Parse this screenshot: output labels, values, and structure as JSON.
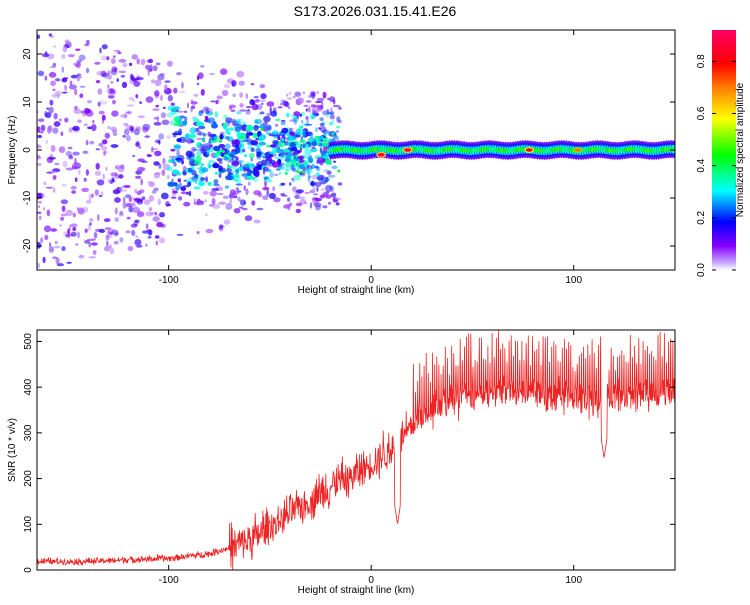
{
  "title": "S173.2026.031.15.41.E26",
  "colors": {
    "axis": "#000000",
    "snr_line": "#ee2222",
    "background": "#ffffff",
    "colorbar_stops": [
      "#ffffff",
      "#8800ff",
      "#0000ff",
      "#00ffff",
      "#00ff00",
      "#ffff00",
      "#ff8800",
      "#ff0000",
      "#ff0066"
    ]
  },
  "chart_data": [
    {
      "type": "heatmap",
      "name": "spectrogram",
      "xlabel": "Height of straight line (km)",
      "ylabel": "Frequency (Hz)",
      "xlim": [
        -165,
        150
      ],
      "ylim": [
        -25,
        25
      ],
      "xticks": [
        -100,
        0,
        100
      ],
      "xtick_labels": [
        "-100",
        "0",
        "100"
      ],
      "yticks": [
        20,
        10,
        0,
        -10,
        -20
      ],
      "ytick_labels": [
        "20",
        "10",
        "0",
        "-10",
        "-20"
      ],
      "colorbar": {
        "label": "Normalized spectral amplitude",
        "range": [
          0.0,
          0.92
        ],
        "ticks": [
          0.0,
          0.2,
          0.4,
          0.6,
          0.8
        ],
        "tick_labels": [
          "0.0",
          "0.2",
          "0.4",
          "0.6",
          "0.8"
        ]
      },
      "band": {
        "center_hz": 0,
        "coherent_from_km": -20,
        "coherent_to_km": 150
      },
      "peaks": [
        {
          "x": 5,
          "y": -1,
          "amplitude": 0.9
        },
        {
          "x": 18,
          "y": 0,
          "amplitude": 0.9
        },
        {
          "x": 78,
          "y": 0,
          "amplitude": 0.8
        },
        {
          "x": 102,
          "y": 0,
          "amplitude": 0.7
        }
      ]
    },
    {
      "type": "line",
      "name": "snr",
      "xlabel": "Height of straight line (km)",
      "ylabel": "SNR (10 * v/v)",
      "xlim": [
        -165,
        150
      ],
      "ylim": [
        0,
        525
      ],
      "xticks": [
        -100,
        0,
        100
      ],
      "xtick_labels": [
        "-100",
        "0",
        "100"
      ],
      "yticks": [
        0,
        100,
        200,
        300,
        400,
        500
      ],
      "ytick_labels": [
        "0",
        "100",
        "200",
        "300",
        "400",
        "500"
      ],
      "trend": {
        "x": [
          -165,
          -140,
          -120,
          -100,
          -80,
          -60,
          -50,
          -40,
          -30,
          -20,
          -10,
          0,
          10,
          20,
          30,
          40,
          50,
          70,
          90,
          110,
          130,
          150
        ],
        "y": [
          18,
          18,
          22,
          25,
          35,
          60,
          90,
          120,
          150,
          180,
          200,
          230,
          260,
          310,
          350,
          370,
          380,
          390,
          380,
          370,
          380,
          390
        ]
      },
      "dips": [
        {
          "x": 13,
          "y": 100
        },
        {
          "x": 115,
          "y": 245
        }
      ]
    }
  ]
}
